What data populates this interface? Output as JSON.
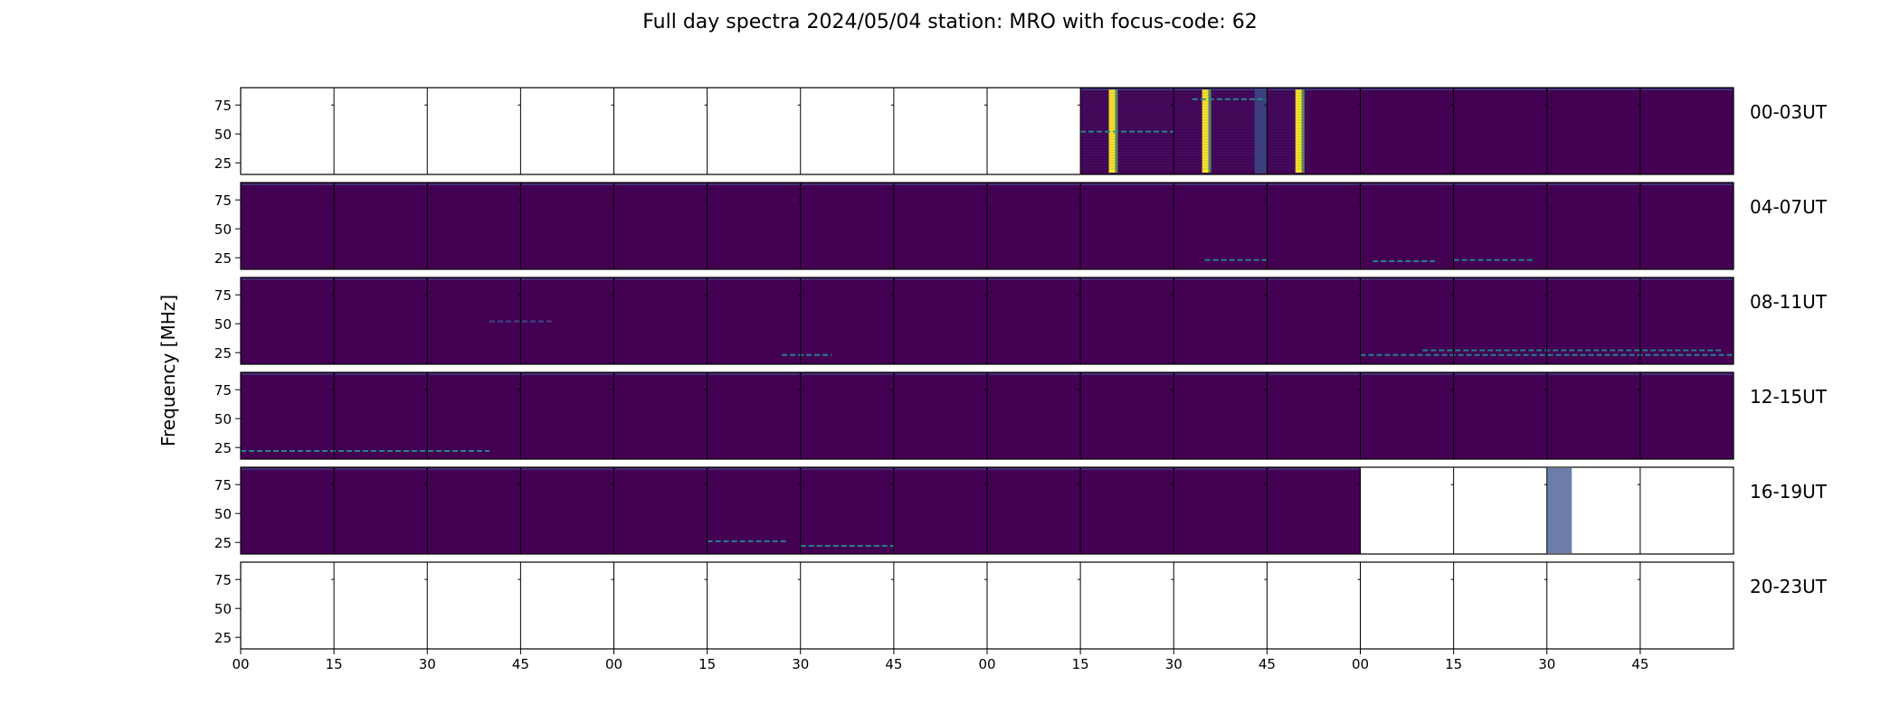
{
  "title": "Full day spectra 2024/05/04 station: MRO with focus-code: 62",
  "colors": {
    "background_signal": "#440154",
    "weak_signal": "#3b528b",
    "moderate_signal": "#21918c",
    "strong_signal": "#5ec962",
    "peak_signal": "#fde725",
    "empty_panel": "#ffffff"
  },
  "chart_data": {
    "type": "heatmap",
    "title": "Full day spectra 2024/05/04 station: MRO with focus-code: 62",
    "ylabel": "Frequency [MHz]",
    "xlabel": "",
    "rows": [
      {
        "label": "00-03UT",
        "panels_with_data": [
          9,
          10,
          11,
          12,
          13,
          14,
          15
        ]
      },
      {
        "label": "04-07UT",
        "panels_with_data": [
          0,
          1,
          2,
          3,
          4,
          5,
          6,
          7,
          8,
          9,
          10,
          11,
          12,
          13,
          14,
          15
        ]
      },
      {
        "label": "08-11UT",
        "panels_with_data": [
          0,
          1,
          2,
          3,
          4,
          5,
          6,
          7,
          8,
          9,
          10,
          11,
          12,
          13,
          14,
          15
        ]
      },
      {
        "label": "12-15UT",
        "panels_with_data": [
          0,
          1,
          2,
          3,
          4,
          5,
          6,
          7,
          8,
          9,
          10,
          11,
          12,
          13,
          14,
          15
        ]
      },
      {
        "label": "16-19UT",
        "panels_with_data": [
          0,
          1,
          2,
          3,
          4,
          5,
          6,
          7,
          8,
          9,
          10,
          11
        ]
      },
      {
        "label": "20-23UT",
        "panels_with_data": []
      }
    ],
    "panel_duration_minutes": 15,
    "panels_per_row": 16,
    "x_tick_labels": [
      "00",
      "15",
      "30",
      "45",
      "00",
      "15",
      "30",
      "45",
      "00",
      "15",
      "30",
      "45",
      "00",
      "15",
      "30",
      "45"
    ],
    "y_tick_labels": [
      "75",
      "50",
      "25"
    ],
    "y_ticks": [
      75,
      50,
      25
    ],
    "ylim": [
      15,
      90
    ],
    "features": [
      {
        "row": 0,
        "kind": "vertical_burst",
        "minute": 20,
        "intensity": "peak"
      },
      {
        "row": 0,
        "kind": "vertical_burst",
        "minute": 35,
        "intensity": "peak"
      },
      {
        "row": 0,
        "kind": "vertical_burst",
        "minute": 50,
        "intensity": "peak"
      },
      {
        "row": 0,
        "kind": "wide_band",
        "minute_start": 43,
        "minute_end": 45,
        "intensity": "weak"
      },
      {
        "row": 0,
        "kind": "noisy_background",
        "minute_start": 15,
        "minute_end": 52
      },
      {
        "row": 0,
        "kind": "horizontal_line",
        "minute_start": 15,
        "minute_end": 30,
        "freq": 52,
        "intensity": "moderate"
      },
      {
        "row": 0,
        "kind": "horizontal_line",
        "minute_start": 33,
        "minute_end": 45,
        "freq": 80,
        "intensity": "moderate"
      },
      {
        "row": 1,
        "kind": "horizontal_line",
        "minute_start": 35,
        "minute_end": 45,
        "freq": 23,
        "intensity": "moderate"
      },
      {
        "row": 1,
        "kind": "horizontal_line",
        "minute_start": 2,
        "minute_end": 12,
        "freq": 22,
        "intensity": "moderate"
      },
      {
        "row": 1,
        "kind": "horizontal_line",
        "minute_start": 15,
        "minute_end": 28,
        "freq": 23,
        "intensity": "moderate"
      },
      {
        "row": 2,
        "kind": "horizontal_line",
        "minute_start": 10,
        "minute_end": 58,
        "freq": 27,
        "intensity": "moderate"
      },
      {
        "row": 2,
        "kind": "horizontal_line",
        "minute_start": 0,
        "minute_end": 60,
        "freq": 23,
        "intensity": "moderate"
      },
      {
        "row": 2,
        "kind": "horizontal_line",
        "minute_start": 27,
        "minute_end": 35,
        "freq": 23,
        "intensity": "moderate"
      },
      {
        "row": 2,
        "kind": "horizontal_line",
        "minute_start": 40,
        "minute_end": 50,
        "freq": 52,
        "intensity": "weak"
      },
      {
        "row": 3,
        "kind": "horizontal_line",
        "minute_start": 0,
        "minute_end": 40,
        "freq": 22,
        "intensity": "moderate"
      },
      {
        "row": 4,
        "kind": "horizontal_line",
        "minute_start": 15,
        "minute_end": 28,
        "freq": 26,
        "intensity": "moderate"
      },
      {
        "row": 4,
        "kind": "horizontal_line",
        "minute_start": 30,
        "minute_end": 45,
        "freq": 22,
        "intensity": "moderate"
      },
      {
        "row": 4,
        "kind": "wide_band",
        "minute_start": 30,
        "minute_end": 34,
        "intensity": "weak"
      }
    ]
  }
}
